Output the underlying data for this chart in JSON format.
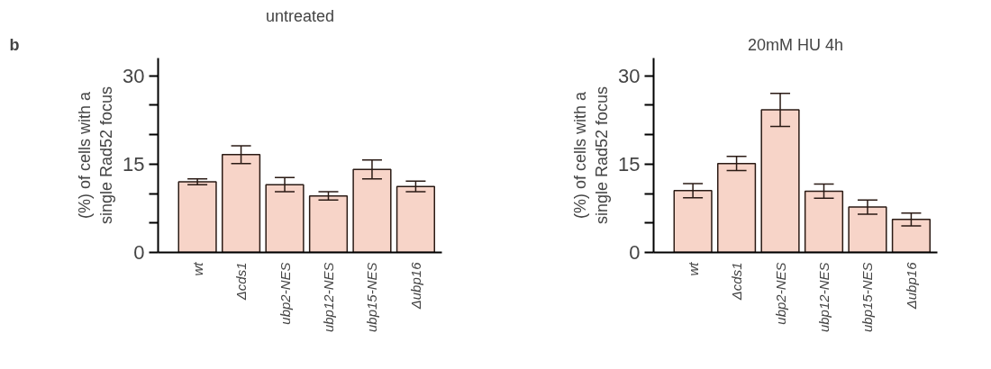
{
  "chart_data": [
    {
      "type": "bar",
      "title": "untreated",
      "ylabel": "(%) of cells with a\nsingle Rad52 focus",
      "annotations": [
        "b"
      ],
      "categories": [
        "wt",
        "Δcds1",
        "ubp2-NES",
        "ubp12-NES",
        "ubp15-NES",
        "Δubp16"
      ],
      "values": [
        12.0,
        16.6,
        11.5,
        9.6,
        14.1,
        11.2
      ],
      "color": "#f7d4c8",
      "errors": [
        0.5,
        1.5,
        1.2,
        0.7,
        1.6,
        0.9
      ],
      "ylim": [
        0,
        33
      ],
      "yticks": [
        0,
        {
          "value": 5,
          "label": null
        },
        {
          "value": 10,
          "label": null
        },
        15,
        {
          "value": 20,
          "label": null
        },
        {
          "value": 25,
          "label": null
        },
        30
      ],
      "grid": false
    },
    {
      "type": "bar",
      "title": "20mM HU 4h",
      "ylabel": "(%) of cells with a\nsingle Rad52 focus",
      "categories": [
        "wt",
        "Δcds1",
        "ubp2-NES",
        "ubp12-NES",
        "ubp15-NES",
        "Δubp16"
      ],
      "values": [
        10.5,
        15.1,
        24.2,
        10.4,
        7.7,
        5.6
      ],
      "color": "#f7d4c8",
      "errors": [
        1.2,
        1.2,
        2.8,
        1.2,
        1.2,
        1.1
      ],
      "ylim": [
        0,
        33
      ],
      "yticks": [
        0,
        {
          "value": 5,
          "label": null
        },
        {
          "value": 10,
          "label": null
        },
        15,
        {
          "value": 20,
          "label": null
        },
        {
          "value": 25,
          "label": null
        },
        30
      ],
      "grid": false
    }
  ]
}
